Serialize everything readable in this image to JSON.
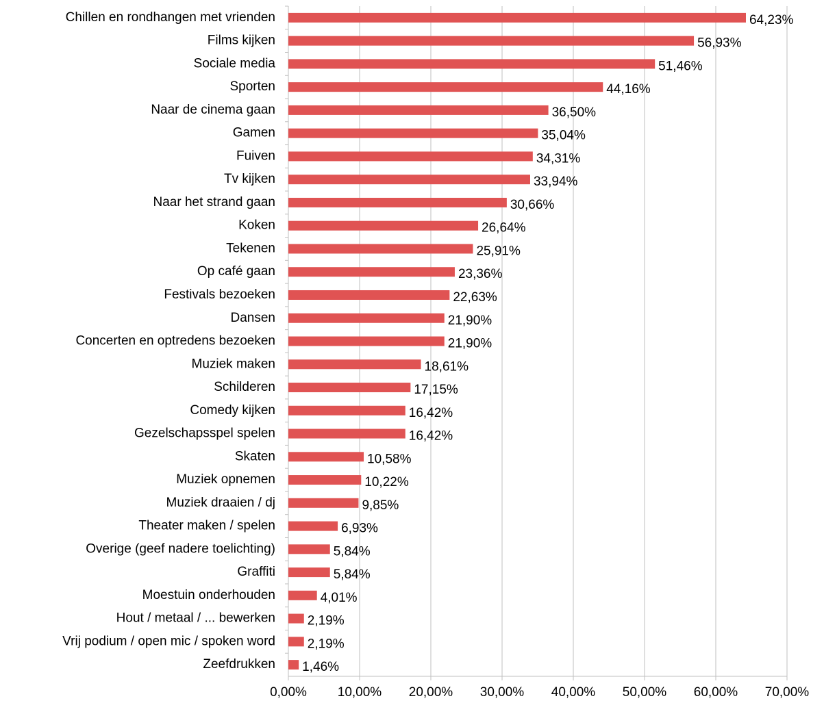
{
  "chart_data": {
    "type": "bar",
    "horizontal": true,
    "color": "#e05353",
    "grid": true,
    "categories": [
      "Chillen en rondhangen met vrienden",
      "Films kijken",
      "Sociale media",
      "Sporten",
      "Naar de cinema gaan",
      "Gamen",
      "Fuiven",
      "Tv kijken",
      "Naar het strand gaan",
      "Koken",
      "Tekenen",
      "Op café gaan",
      "Festivals bezoeken",
      "Dansen",
      "Concerten en optredens bezoeken",
      "Muziek maken",
      "Schilderen",
      "Comedy kijken",
      "Gezelschapsspel spelen",
      "Skaten",
      "Muziek opnemen",
      "Muziek draaien / dj",
      "Theater maken / spelen",
      "Overige (geef nadere toelichting)",
      "Graffiti",
      "Moestuin onderhouden",
      "Hout / metaal / ... bewerken",
      "Vrij podium / open mic / spoken word",
      "Zeefdrukken"
    ],
    "values": [
      64.23,
      56.93,
      51.46,
      44.16,
      36.5,
      35.04,
      34.31,
      33.94,
      30.66,
      26.64,
      25.91,
      23.36,
      22.63,
      21.9,
      21.9,
      18.61,
      17.15,
      16.42,
      16.42,
      10.58,
      10.22,
      9.85,
      6.93,
      5.84,
      5.84,
      4.01,
      2.19,
      2.19,
      1.46
    ],
    "value_labels": [
      "64,23%",
      "56,93%",
      "51,46%",
      "44,16%",
      "36,50%",
      "35,04%",
      "34,31%",
      "33,94%",
      "30,66%",
      "26,64%",
      "25,91%",
      "23,36%",
      "22,63%",
      "21,90%",
      "21,90%",
      "18,61%",
      "17,15%",
      "16,42%",
      "16,42%",
      "10,58%",
      "10,22%",
      "9,85%",
      "6,93%",
      "5,84%",
      "5,84%",
      "4,01%",
      "2,19%",
      "2,19%",
      "1,46%"
    ],
    "xlim": [
      0,
      70
    ],
    "xticks": [
      {
        "value": 0,
        "label": "0,00%"
      },
      {
        "value": 10,
        "label": "10,00%"
      },
      {
        "value": 20,
        "label": "20,00%"
      },
      {
        "value": 30,
        "label": "30,00%"
      },
      {
        "value": 40,
        "label": "40,00%"
      },
      {
        "value": 50,
        "label": "50,00%"
      },
      {
        "value": 60,
        "label": "60,00%"
      },
      {
        "value": 70,
        "label": "70,00%"
      }
    ]
  }
}
